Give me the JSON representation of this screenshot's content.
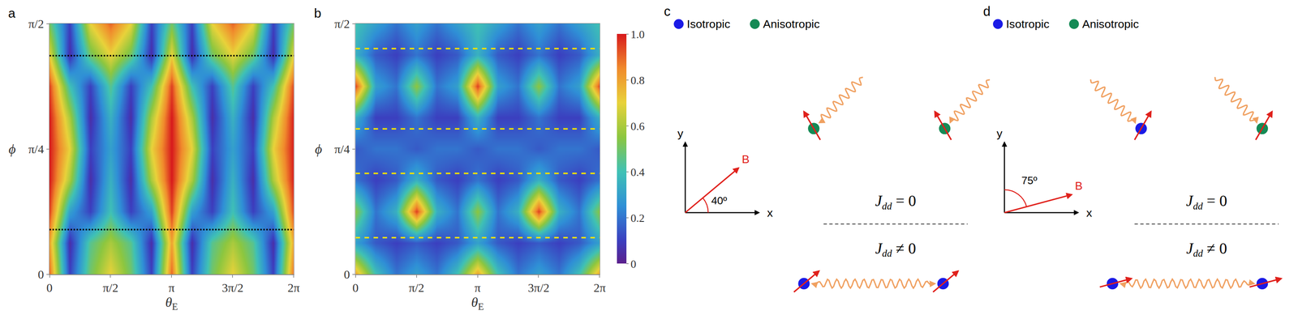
{
  "chart_data": [
    {
      "panel": "a",
      "type": "heatmap",
      "x_label": "θ",
      "x_label_subscript": "E",
      "y_label": "ϕ",
      "x": [
        0,
        0.5236,
        1.0472,
        1.5708,
        2.0944,
        2.618,
        3.1416,
        3.6652,
        4.1888,
        4.7124,
        5.236,
        5.7596,
        6.2832
      ],
      "y": [
        0,
        0.1963,
        0.3927,
        0.589,
        0.7854,
        0.9817,
        1.1781,
        1.3744,
        1.5708
      ],
      "z": [
        [
          0.9,
          0.1,
          0.5,
          0.7,
          0.5,
          0.1,
          0.9,
          0.1,
          0.5,
          0.7,
          0.5,
          0.1,
          0.9
        ],
        [
          0.8,
          0.05,
          0.45,
          0.6,
          0.45,
          0.05,
          0.8,
          0.05,
          0.45,
          0.6,
          0.45,
          0.05,
          0.8
        ],
        [
          0.95,
          0.3,
          0.1,
          0.4,
          0.1,
          0.3,
          0.95,
          0.3,
          0.1,
          0.4,
          0.1,
          0.3,
          0.95
        ],
        [
          1,
          0.6,
          0.05,
          0.35,
          0.05,
          0.6,
          1,
          0.6,
          0.05,
          0.35,
          0.05,
          0.6,
          1
        ],
        [
          1,
          0.7,
          0.1,
          0.3,
          0.1,
          0.7,
          1,
          0.7,
          0.1,
          0.3,
          0.1,
          0.7,
          1
        ],
        [
          1,
          0.6,
          0.05,
          0.35,
          0.05,
          0.6,
          1,
          0.6,
          0.05,
          0.35,
          0.05,
          0.6,
          1
        ],
        [
          0.95,
          0.4,
          0.1,
          0.45,
          0.1,
          0.4,
          0.95,
          0.4,
          0.1,
          0.45,
          0.1,
          0.4,
          0.95
        ],
        [
          0.7,
          0.05,
          0.5,
          0.7,
          0.5,
          0.05,
          0.7,
          0.05,
          0.5,
          0.7,
          0.5,
          0.05,
          0.7
        ],
        [
          0.5,
          0.1,
          0.7,
          0.9,
          0.7,
          0.1,
          0.5,
          0.1,
          0.7,
          0.9,
          0.7,
          0.1,
          0.5
        ]
      ],
      "xlim": [
        0,
        6.2832
      ],
      "ylim": [
        0,
        1.5708
      ],
      "xticks": [
        0,
        {
          "value": 1.5708,
          "label": "π/2"
        },
        {
          "value": 3.1416,
          "label": "π"
        },
        {
          "value": 4.7124,
          "label": "3π/2"
        },
        {
          "value": 6.2832,
          "label": "2π"
        }
      ],
      "yticks": [
        0,
        {
          "value": 0.7854,
          "label": "π/4"
        },
        {
          "value": 1.5708,
          "label": "π/2"
        }
      ],
      "reference_lines": {
        "values": [
          0.28,
          1.37
        ],
        "color": "#000000",
        "line_style": "dot"
      }
    },
    {
      "panel": "b",
      "type": "heatmap",
      "x_label": "θ",
      "x_label_subscript": "E",
      "y_label": "ϕ",
      "x": [
        0,
        0.5236,
        1.0472,
        1.5708,
        2.0944,
        2.618,
        3.1416,
        3.6652,
        4.1888,
        4.7124,
        5.236,
        5.7596,
        6.2832
      ],
      "y": [
        0,
        0.1963,
        0.3927,
        0.589,
        0.7854,
        0.9817,
        1.1781,
        1.3744,
        1.5708
      ],
      "z": [
        [
          0.8,
          0.4,
          0.2,
          0.3,
          0.2,
          0.4,
          0.8,
          0.4,
          0.2,
          0.3,
          0.2,
          0.4,
          0.8
        ],
        [
          0.3,
          0.15,
          0.1,
          0.15,
          0.1,
          0.15,
          0.3,
          0.15,
          0.1,
          0.15,
          0.1,
          0.15,
          0.3
        ],
        [
          0.55,
          0.2,
          0.35,
          0.95,
          0.35,
          0.2,
          0.55,
          0.2,
          0.35,
          0.95,
          0.35,
          0.2,
          0.55
        ],
        [
          0.2,
          0.1,
          0.15,
          0.35,
          0.15,
          0.1,
          0.2,
          0.1,
          0.15,
          0.35,
          0.15,
          0.1,
          0.2
        ],
        [
          0.15,
          0.2,
          0.2,
          0.15,
          0.2,
          0.2,
          0.15,
          0.2,
          0.2,
          0.15,
          0.2,
          0.2,
          0.15
        ],
        [
          0.35,
          0.1,
          0.1,
          0.2,
          0.1,
          0.1,
          0.35,
          0.1,
          0.1,
          0.2,
          0.1,
          0.1,
          0.35
        ],
        [
          0.95,
          0.3,
          0.2,
          0.55,
          0.2,
          0.3,
          0.95,
          0.3,
          0.2,
          0.55,
          0.2,
          0.3,
          0.95
        ],
        [
          0.35,
          0.15,
          0.1,
          0.2,
          0.1,
          0.15,
          0.35,
          0.15,
          0.1,
          0.2,
          0.1,
          0.15,
          0.35
        ],
        [
          0.4,
          0.3,
          0.2,
          0.3,
          0.2,
          0.3,
          0.4,
          0.3,
          0.2,
          0.3,
          0.2,
          0.3,
          0.4
        ]
      ],
      "xlim": [
        0,
        6.2832
      ],
      "ylim": [
        0,
        1.5708
      ],
      "xticks": [
        0,
        {
          "value": 1.5708,
          "label": "π/2"
        },
        {
          "value": 3.1416,
          "label": "π"
        },
        {
          "value": 4.7124,
          "label": "3π/2"
        },
        {
          "value": 6.2832,
          "label": "2π"
        }
      ],
      "yticks": [
        0,
        {
          "value": 0.7854,
          "label": "π/4"
        },
        {
          "value": 1.5708,
          "label": "π/2"
        }
      ],
      "reference_lines": {
        "values": [
          0.229,
          0.632,
          0.911,
          1.414
        ],
        "color": "#f2e200",
        "line_style": "dash"
      },
      "colorbar": {
        "range": [
          0,
          1
        ],
        "ticks": [
          0,
          0.2,
          0.4,
          0.6,
          0.8,
          {
            "value": 1,
            "label": "1.0"
          }
        ]
      }
    }
  ],
  "diagrams": [
    {
      "panel": "c",
      "legend": [
        {
          "label": "Isotropic",
          "color": "#1a1ae6"
        },
        {
          "label": "Anisotropic",
          "color": "#158a55"
        }
      ],
      "axes": {
        "x": "x",
        "y": "y"
      },
      "field": {
        "label": "B",
        "angle": 40,
        "angle_label": "40º",
        "measured_from": "x"
      },
      "top": {
        "atoms": [
          "Anisotropic",
          "Anisotropic"
        ],
        "condition": {
          "symbol": "J",
          "subscript": "dd",
          "relation": "= 0"
        }
      },
      "bottom": {
        "atoms": [
          "Isotropic",
          "Isotropic"
        ],
        "condition": {
          "symbol": "J",
          "subscript": "dd",
          "relation": "≠ 0"
        }
      }
    },
    {
      "panel": "d",
      "legend": [
        {
          "label": "Isotropic",
          "color": "#1a1ae6"
        },
        {
          "label": "Anisotropic",
          "color": "#158a55"
        }
      ],
      "axes": {
        "x": "x",
        "y": "y"
      },
      "field": {
        "label": "B",
        "angle": 75,
        "angle_label": "75º",
        "measured_from": "y"
      },
      "top": {
        "atoms": [
          "Isotropic",
          "Anisotropic"
        ],
        "condition": {
          "symbol": "J",
          "subscript": "dd",
          "relation": "= 0"
        }
      },
      "bottom": {
        "atoms": [
          "Isotropic",
          "Isotropic"
        ],
        "condition": {
          "symbol": "J",
          "subscript": "dd",
          "relation": "≠ 0"
        }
      }
    }
  ]
}
